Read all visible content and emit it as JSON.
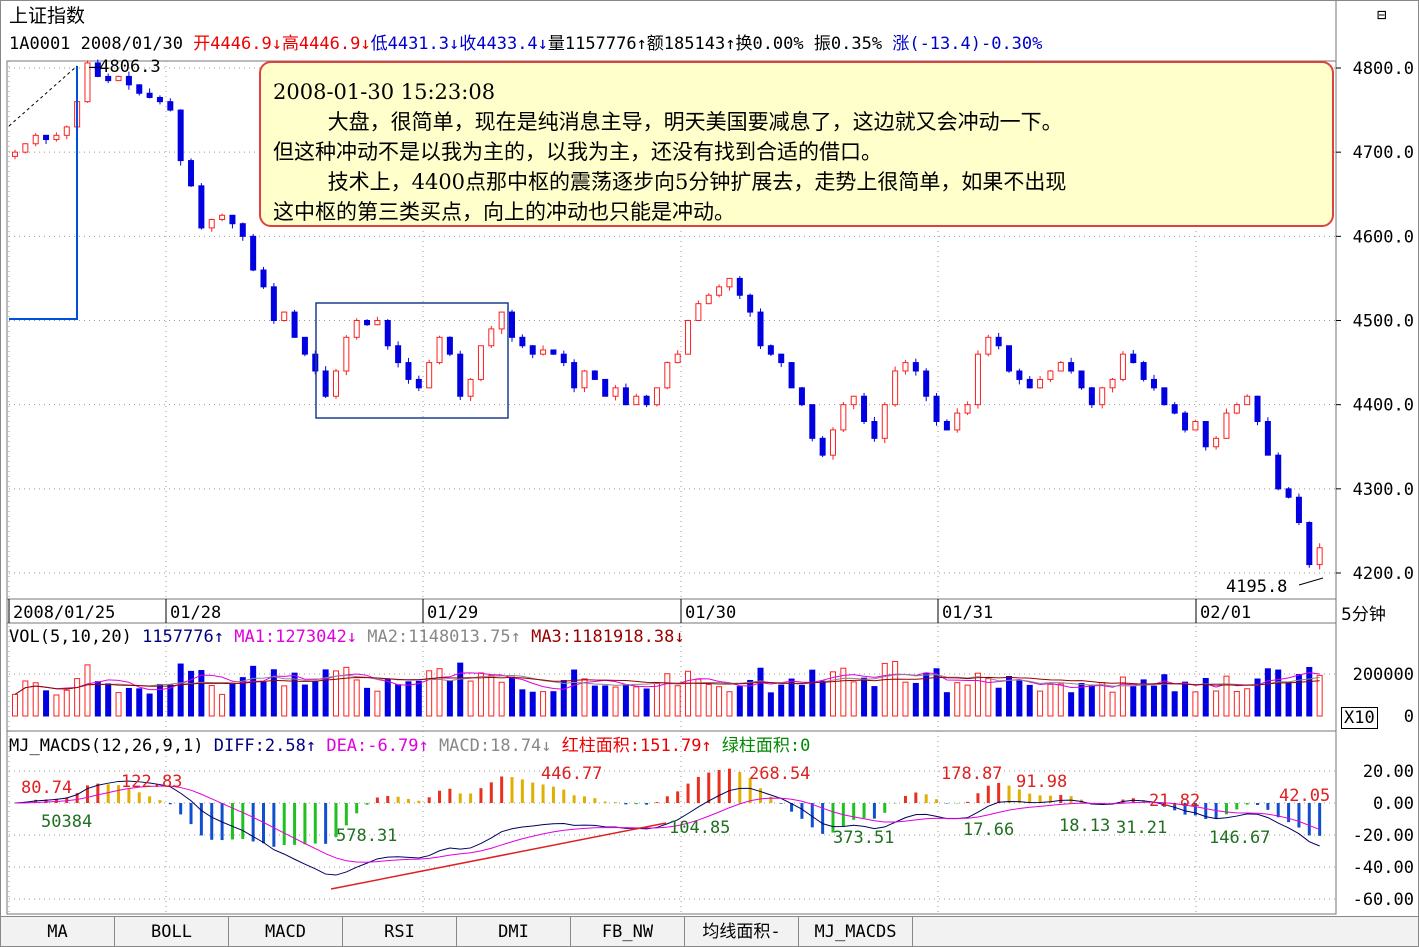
{
  "header": {
    "title": "上证指数",
    "code": "1A0001",
    "date": "2008/01/30",
    "open": "开4446.9↓",
    "high": "高4446.9↓",
    "low": "低4431.3↓",
    "close": "收4433.4↓",
    "volume": "量1157776↑",
    "amount": "额185143↑",
    "turnover": "换0.00%",
    "amplitude": "振0.35%",
    "change": "涨(-13.4)-0.30%"
  },
  "note": {
    "time": "2008-01-30 15:23:08",
    "lines": [
      "大盘，很简单，现在是纯消息主导，明天美国要减息了，这边就又会冲动一下。",
      "但这种冲动不是以我为主的，以我为主，还没有找到合适的借口。",
      "技术上，4400点那中枢的震荡逐步向5分钟扩展去，走势上很简单，如果不出现",
      "这中枢的第三类买点，向上的冲动也只能是冲动。"
    ]
  },
  "colors": {
    "up": "#ff2020",
    "down": "#0000e0",
    "box": "#1a3f8f",
    "note_border": "#e04040",
    "note_bg": "#ffffcc"
  },
  "chart_data": [
    {
      "type": "candlestick",
      "period": "5分钟",
      "ylim": [
        4170,
        4830
      ],
      "yticks": [
        "4800.0",
        "4700.0",
        "4600.0",
        "4500.0",
        "4400.0",
        "4300.0",
        "4200.0"
      ],
      "ytick_values": [
        4800,
        4700,
        4600,
        4500,
        4400,
        4300,
        4200
      ],
      "xticks": [
        "2008/01/25",
        "01/28",
        "01/29",
        "01/30",
        "01/31",
        "02/01"
      ],
      "annotations": {
        "high": "4806.3",
        "low": "4195.8"
      },
      "closes": [
        4700,
        4710,
        4720,
        4715,
        4720,
        4730,
        4760,
        4806,
        4790,
        4785,
        4790,
        4780,
        4770,
        4765,
        4760,
        4750,
        4690,
        4660,
        4610,
        4620,
        4625,
        4615,
        4600,
        4560,
        4540,
        4500,
        4510,
        4480,
        4460,
        4440,
        4410,
        4440,
        4480,
        4500,
        4495,
        4500,
        4470,
        4450,
        4430,
        4420,
        4450,
        4480,
        4460,
        4410,
        4430,
        4470,
        4490,
        4510,
        4480,
        4470,
        4460,
        4465,
        4460,
        4450,
        4420,
        4440,
        4430,
        4410,
        4420,
        4400,
        4410,
        4400,
        4420,
        4450,
        4460,
        4500,
        4520,
        4530,
        4540,
        4550,
        4530,
        4510,
        4470,
        4460,
        4450,
        4420,
        4400,
        4360,
        4340,
        4370,
        4400,
        4410,
        4380,
        4360,
        4400,
        4440,
        4450,
        4440,
        4410,
        4380,
        4370,
        4390,
        4400,
        4460,
        4480,
        4470,
        4440,
        4430,
        4420,
        4430,
        4440,
        4450,
        4440,
        4420,
        4400,
        4420,
        4430,
        4460,
        4450,
        4430,
        4420,
        4400,
        4390,
        4370,
        4380,
        4350,
        4360,
        4390,
        4400,
        4410,
        4380,
        4340,
        4300,
        4290,
        4260,
        4210,
        4230
      ]
    },
    {
      "type": "bar",
      "title": "VOL(5,10,20)",
      "value": "1157776↑",
      "ma1": "MA1:1273042↓",
      "ma2": "MA2:1148013.75↑",
      "ma3": "MA3:1181918.38↓",
      "yticks": [
        "200000",
        "0"
      ],
      "unit": "X10"
    },
    {
      "type": "bar",
      "title": "MJ_MACDS(12,26,9,1)",
      "diff": "DIFF:2.58↑",
      "dea": "DEA:-6.79↑",
      "macd": "MACD:18.74↓",
      "red_area": "红柱面积:151.79↑",
      "green_area": "绿柱面积:0",
      "yticks": [
        "20.00",
        "0.00",
        "-20.00",
        "-40.00",
        "-60.00"
      ],
      "labels_red": [
        "80.74",
        "122.83",
        "446.77",
        "268.54",
        "178.87",
        "91.98",
        "21.82",
        "42.05"
      ],
      "labels_green": [
        "50384",
        "578.31",
        "104.85",
        "373.51",
        "17.66",
        "18.13",
        "31.21",
        "146.67"
      ]
    }
  ],
  "tabs": [
    "MA",
    "BOLL",
    "MACD",
    "RSI",
    "DMI",
    "FB_NW",
    "均线面积-",
    "MJ_MACDS"
  ]
}
